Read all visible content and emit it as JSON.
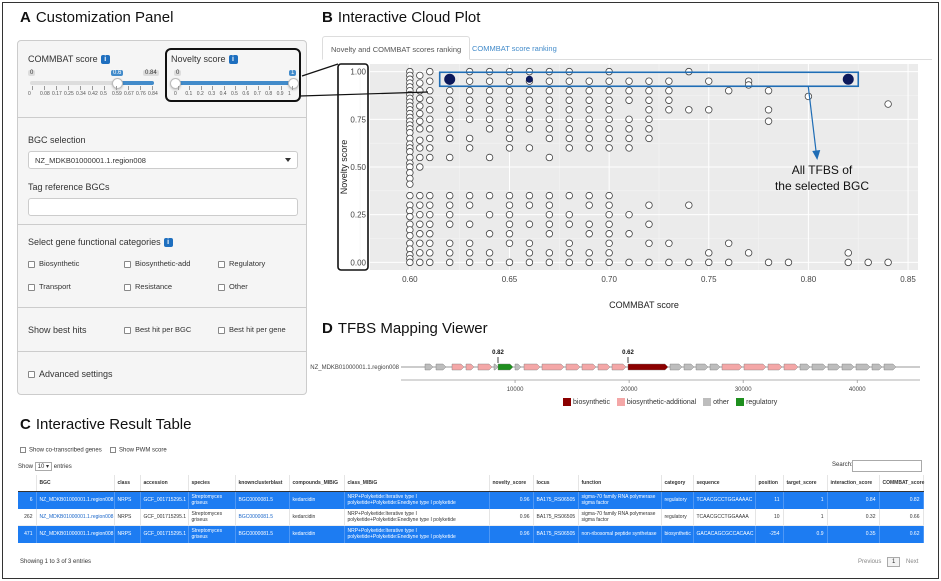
{
  "sections": {
    "a_letter": "A",
    "a_title": "Customization Panel",
    "b_letter": "B",
    "b_title": "Interactive Cloud Plot",
    "c_letter": "C",
    "c_title": "Interactive Result Table",
    "d_letter": "D",
    "d_title": "TFBS Mapping Viewer"
  },
  "panel": {
    "commbat_label": "COMMBAT score",
    "commbat_min": "0",
    "commbat_max": "0.84",
    "commbat_value": "0.6",
    "commbat_ticks": [
      "0",
      "0.08",
      "0.17",
      "0.25",
      "0.34",
      "0.42",
      "0.5",
      "0.59",
      "0.67",
      "0.76",
      "0.84"
    ],
    "novelty_label": "Novelty score",
    "novelty_min": "0",
    "novelty_max": "1",
    "novelty_ticks": [
      "0",
      "0.1",
      "0.2",
      "0.3",
      "0.4",
      "0.5",
      "0.6",
      "0.7",
      "0.8",
      "0.9",
      "1"
    ],
    "bgc_label": "BGC selection",
    "bgc_value": "NZ_MDKB01000001.1.region008",
    "tag_label": "Tag reference BGCs",
    "gene_cat_label": "Select gene functional categories",
    "categories": [
      "Biosynthetic",
      "Biosynthetic-add",
      "Regulatory",
      "Transport",
      "Resistance",
      "Other"
    ],
    "best_hits_label": "Show best hits",
    "best_per_bgc": "Best hit per BGC",
    "best_per_gene": "Best hit per gene",
    "advanced": "Advanced settings"
  },
  "plot_tabs": [
    "Novelty and COMMBAT scores ranking",
    "COMMBAT score ranking"
  ],
  "chart_data": {
    "type": "scatter",
    "title": "",
    "xlabel": "COMMBAT score",
    "ylabel": "Novelty score",
    "xlim": [
      0.58,
      0.855
    ],
    "ylim": [
      -0.04,
      1.04
    ],
    "xticks": [
      "0.60",
      "0.65",
      "0.70",
      "0.75",
      "0.80",
      "0.85"
    ],
    "yticks": [
      "0.00",
      "0.25",
      "0.50",
      "0.75",
      "1.00"
    ],
    "grid": true,
    "series": [
      {
        "style": "open-circle",
        "columns": [
          {
            "x": 0.6,
            "y": [
              1.0,
              0.98,
              0.96,
              0.94,
              0.92,
              0.9,
              0.88,
              0.86,
              0.84,
              0.82,
              0.8,
              0.78,
              0.76,
              0.74,
              0.72,
              0.7,
              0.68,
              0.65,
              0.62,
              0.6,
              0.58,
              0.55,
              0.52,
              0.5,
              0.47,
              0.44,
              0.41,
              0.35,
              0.3,
              0.27,
              0.24,
              0.2,
              0.17,
              0.14,
              0.1,
              0.07,
              0.04,
              0.02,
              0.0
            ]
          },
          {
            "x": 0.605,
            "y": [
              0.98,
              0.94,
              0.9,
              0.86,
              0.82,
              0.78,
              0.74,
              0.7,
              0.64,
              0.6,
              0.55,
              0.5,
              0.35,
              0.3,
              0.25,
              0.2,
              0.15,
              0.1,
              0.05,
              0.0
            ]
          },
          {
            "x": 0.61,
            "y": [
              1.0,
              0.95,
              0.9,
              0.85,
              0.8,
              0.75,
              0.7,
              0.65,
              0.6,
              0.55,
              0.35,
              0.3,
              0.25,
              0.2,
              0.15,
              0.1,
              0.05,
              0.0
            ]
          },
          {
            "x": 0.62,
            "y": [
              0.95,
              0.9,
              0.85,
              0.8,
              0.75,
              0.7,
              0.65,
              0.55,
              0.35,
              0.3,
              0.25,
              0.2,
              0.1,
              0.05,
              0.0
            ]
          },
          {
            "x": 0.63,
            "y": [
              1.0,
              0.95,
              0.9,
              0.85,
              0.8,
              0.75,
              0.65,
              0.6,
              0.35,
              0.3,
              0.2,
              0.1,
              0.05,
              0.0
            ]
          },
          {
            "x": 0.64,
            "y": [
              1.0,
              0.95,
              0.9,
              0.85,
              0.8,
              0.75,
              0.7,
              0.55,
              0.35,
              0.25,
              0.15,
              0.05,
              0.0
            ]
          },
          {
            "x": 0.65,
            "y": [
              1.0,
              0.95,
              0.9,
              0.85,
              0.8,
              0.75,
              0.7,
              0.65,
              0.6,
              0.35,
              0.3,
              0.25,
              0.2,
              0.15,
              0.1,
              0.0
            ]
          },
          {
            "x": 0.66,
            "y": [
              1.0,
              0.95,
              0.9,
              0.85,
              0.8,
              0.75,
              0.7,
              0.6,
              0.35,
              0.3,
              0.2,
              0.1,
              0.05,
              0.0
            ]
          },
          {
            "x": 0.67,
            "y": [
              1.0,
              0.95,
              0.9,
              0.85,
              0.8,
              0.75,
              0.7,
              0.65,
              0.55,
              0.35,
              0.3,
              0.25,
              0.2,
              0.15,
              0.05,
              0.0
            ]
          },
          {
            "x": 0.68,
            "y": [
              1.0,
              0.95,
              0.9,
              0.85,
              0.8,
              0.75,
              0.7,
              0.65,
              0.6,
              0.35,
              0.25,
              0.2,
              0.1,
              0.05,
              0.0
            ]
          },
          {
            "x": 0.69,
            "y": [
              0.95,
              0.9,
              0.85,
              0.8,
              0.75,
              0.7,
              0.65,
              0.6,
              0.35,
              0.3,
              0.2,
              0.15,
              0.05,
              0.0
            ]
          },
          {
            "x": 0.7,
            "y": [
              1.0,
              0.95,
              0.9,
              0.85,
              0.8,
              0.75,
              0.7,
              0.65,
              0.6,
              0.35,
              0.3,
              0.25,
              0.2,
              0.15,
              0.1,
              0.05,
              0.0
            ]
          },
          {
            "x": 0.71,
            "y": [
              0.95,
              0.9,
              0.85,
              0.75,
              0.7,
              0.65,
              0.6,
              0.25,
              0.15,
              0.0
            ]
          },
          {
            "x": 0.72,
            "y": [
              0.95,
              0.9,
              0.85,
              0.8,
              0.75,
              0.7,
              0.65,
              0.3,
              0.2,
              0.1,
              0.0
            ]
          },
          {
            "x": 0.73,
            "y": [
              0.95,
              0.9,
              0.85,
              0.8,
              0.1,
              0.0
            ]
          },
          {
            "x": 0.74,
            "y": [
              1.0,
              0.8,
              0.3,
              0.0
            ]
          },
          {
            "x": 0.75,
            "y": [
              0.95,
              0.8,
              0.05,
              0.0
            ]
          },
          {
            "x": 0.76,
            "y": [
              0.9,
              0.1,
              0.0
            ]
          },
          {
            "x": 0.77,
            "y": [
              0.95,
              0.93,
              0.05
            ]
          },
          {
            "x": 0.78,
            "y": [
              0.9,
              0.8,
              0.74,
              0.0
            ]
          },
          {
            "x": 0.79,
            "y": [
              0.0
            ]
          },
          {
            "x": 0.8,
            "y": [
              0.87
            ]
          },
          {
            "x": 0.82,
            "y": [
              0.05,
              0.0
            ]
          },
          {
            "x": 0.83,
            "y": [
              0.0
            ]
          },
          {
            "x": 0.84,
            "y": [
              0.83,
              0.0
            ]
          }
        ]
      },
      {
        "style": "filled-navy",
        "points": [
          {
            "x": 0.62,
            "y": 0.96
          },
          {
            "x": 0.66,
            "y": 0.96
          },
          {
            "x": 0.82,
            "y": 0.96
          }
        ]
      }
    ],
    "annotation": "All TFBS of the selected BGC"
  },
  "viewer": {
    "region": "NZ_MDKB01000001.1.region008",
    "score1": "0.82",
    "score2": "0.62",
    "axis_ticks": [
      "10000",
      "20000",
      "30000",
      "40000"
    ],
    "axis_values": [
      10000,
      20000,
      30000,
      40000
    ],
    "legend": [
      {
        "label": "biosynthetic",
        "color": "#8b0000"
      },
      {
        "label": "biosynthetic-additional",
        "color": "#f4a7a7"
      },
      {
        "label": "other",
        "color": "#bdbdbd"
      },
      {
        "label": "regulatory",
        "color": "#1e8f1e"
      }
    ]
  },
  "table": {
    "show_cotrans": "Show co-transcribed genes",
    "show_pwm": "Show PWM score",
    "show_label": "Show",
    "entries_value": "10",
    "entries_label": "entries",
    "search_label": "Search:",
    "columns": [
      "",
      "BGC",
      "class",
      "accession",
      "species",
      "knownclusterblast",
      "compounds_MIBiG",
      "class_MIBiG",
      "novelty_score",
      "locus",
      "function",
      "category",
      "sequence",
      "position",
      "target_score",
      "interaction_score",
      "COMMBAT_score"
    ],
    "rows": [
      {
        "selected": true,
        "cells": [
          "6",
          "NZ_MDKB01000001.1.region008",
          "NRPS",
          "GCF_001715295.1",
          "Streptomyces griseus",
          "BGC0000081.5",
          "kedarcidin",
          "NRP+Polyketide:Iterative type I polyketide+Polyketide:Enediyne type I polyketide",
          "0.96",
          "BA175_RS06505",
          "sigma-70 family RNA polymerase sigma factor",
          "regulatory",
          "TCAACGCCTGGAAAAC",
          "11",
          "1",
          "0.84",
          "0.82"
        ]
      },
      {
        "selected": false,
        "cells": [
          "262",
          "NZ_MDKB01000001.1.region008",
          "NRPS",
          "GCF_001715295.1",
          "Streptomyces griseus",
          "BGC0000081.5",
          "kedarcidin",
          "NRP+Polyketide:Iterative type I polyketide+Polyketide:Enediyne type I polyketide",
          "0.96",
          "BA175_RS06505",
          "sigma-70 family RNA polymerase sigma factor",
          "regulatory",
          "TCAACGCCTGGAAAA",
          "10",
          "1",
          "0.32",
          "0.66"
        ]
      },
      {
        "selected": true,
        "cells": [
          "471",
          "NZ_MDKB01000001.1.region008",
          "NRPS",
          "GCF_001715295.1",
          "Streptomyces griseus",
          "BGC0000081.5",
          "kedarcidin",
          "NRP+Polyketide:Iterative type I polyketide+Polyketide:Enediyne type I polyketide",
          "0.96",
          "BA175_RS06505",
          "non-ribosomal peptide synthetase",
          "biosynthetic",
          "GACACAGCGCCACAAC",
          "-254",
          "0.9",
          "0.35",
          "0.62"
        ]
      }
    ],
    "footer": "Showing 1 to 3 of 3 entries",
    "prev": "Previous",
    "page": "1",
    "next": "Next"
  }
}
